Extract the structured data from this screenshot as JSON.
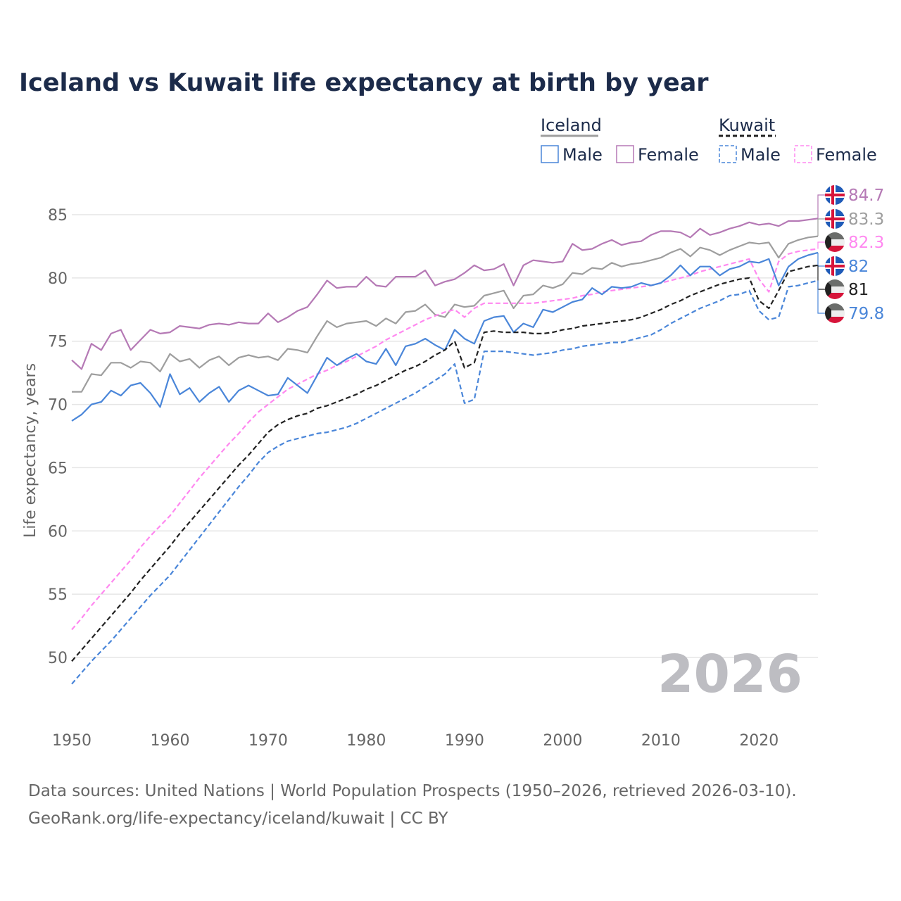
{
  "title": "Iceland vs Kuwait life expectancy at birth by year",
  "legend": {
    "groups": [
      {
        "label": "Iceland",
        "underline_color": "#9e9e9e",
        "dashed": false
      },
      {
        "label": "Kuwait",
        "underline_color": "#222222",
        "dashed": true
      }
    ],
    "items": [
      {
        "label": "Male",
        "color": "#4a86d9",
        "dashed": false
      },
      {
        "label": "Female",
        "color": "#b579b5",
        "dashed": false
      },
      {
        "label": "Male",
        "color": "#4a86d9",
        "dashed": true
      },
      {
        "label": "Female",
        "color": "#ff88f0",
        "dashed": true
      }
    ]
  },
  "current_year": "2026",
  "source_line1": "Data sources: United Nations | World Population Prospects (1950–2026, retrieved 2026-03-10).",
  "source_line2": "GeoRank.org/life-expectancy/iceland/kuwait | CC BY",
  "chart_data": {
    "type": "line",
    "title": "Iceland vs Kuwait life expectancy at birth by year",
    "xlabel": "",
    "ylabel": "Life expectancy, years",
    "xlim": [
      1950,
      2026
    ],
    "ylim": [
      45.2,
      87
    ],
    "x_ticks": [
      "1950",
      "1960",
      "1970",
      "1980",
      "1990",
      "2000",
      "2010",
      "2020"
    ],
    "y_ticks": [
      "50",
      "55",
      "60",
      "65",
      "70",
      "75",
      "80",
      "85"
    ],
    "grid": true,
    "legend_position": "top-right",
    "x_start": 1950,
    "series": [
      {
        "name": "Iceland Female",
        "country": "Iceland",
        "color": "#b579b5",
        "dashed": false,
        "end_label": "84.7",
        "flag": "iceland",
        "values": [
          73.5,
          72.8,
          74.8,
          74.3,
          75.6,
          75.9,
          74.3,
          75.1,
          75.9,
          75.6,
          75.7,
          76.2,
          76.1,
          76.0,
          76.3,
          76.4,
          76.3,
          76.5,
          76.4,
          76.4,
          77.2,
          76.5,
          76.9,
          77.4,
          77.7,
          78.7,
          79.8,
          79.2,
          79.3,
          79.3,
          80.1,
          79.4,
          79.3,
          80.1,
          80.1,
          80.1,
          80.6,
          79.4,
          79.7,
          79.9,
          80.4,
          81.0,
          80.6,
          80.7,
          81.1,
          79.4,
          81.0,
          81.4,
          81.3,
          81.2,
          81.3,
          82.7,
          82.2,
          82.3,
          82.7,
          83.0,
          82.6,
          82.8,
          82.9,
          83.4,
          83.7,
          83.7,
          83.6,
          83.2,
          83.9,
          83.4,
          83.6,
          83.9,
          84.1,
          84.4,
          84.2,
          84.3,
          84.1,
          84.5,
          84.5,
          84.6,
          84.7
        ]
      },
      {
        "name": "Iceland Total",
        "country": "Iceland",
        "color": "#9e9e9e",
        "dashed": false,
        "end_label": "83.3",
        "flag": "iceland",
        "values": [
          71.0,
          71.0,
          72.4,
          72.3,
          73.3,
          73.3,
          72.9,
          73.4,
          73.3,
          72.6,
          74.0,
          73.4,
          73.6,
          72.9,
          73.5,
          73.8,
          73.1,
          73.7,
          73.9,
          73.7,
          73.8,
          73.5,
          74.4,
          74.3,
          74.1,
          75.4,
          76.6,
          76.1,
          76.4,
          76.5,
          76.6,
          76.2,
          76.8,
          76.4,
          77.3,
          77.4,
          77.9,
          77.1,
          76.9,
          77.9,
          77.7,
          77.8,
          78.6,
          78.8,
          79.0,
          77.6,
          78.6,
          78.7,
          79.4,
          79.2,
          79.5,
          80.4,
          80.3,
          80.8,
          80.7,
          81.2,
          80.9,
          81.1,
          81.2,
          81.4,
          81.6,
          82.0,
          82.3,
          81.7,
          82.4,
          82.2,
          81.8,
          82.2,
          82.5,
          82.8,
          82.7,
          82.8,
          81.6,
          82.7,
          83.0,
          83.2,
          83.3
        ]
      },
      {
        "name": "Kuwait Female",
        "country": "Kuwait",
        "color": "#ff88f0",
        "dashed": true,
        "end_label": "82.3",
        "flag": "kuwait",
        "values": [
          52.2,
          53.1,
          54.1,
          55.0,
          55.9,
          56.8,
          57.7,
          58.7,
          59.6,
          60.4,
          61.2,
          62.2,
          63.2,
          64.2,
          65.1,
          66.0,
          66.9,
          67.7,
          68.6,
          69.4,
          70.0,
          70.6,
          71.2,
          71.6,
          72.0,
          72.4,
          72.7,
          73.1,
          73.4,
          73.8,
          74.2,
          74.6,
          75.1,
          75.5,
          75.9,
          76.3,
          76.7,
          77.0,
          77.3,
          77.5,
          76.9,
          77.6,
          78.0,
          78.0,
          78.0,
          78.0,
          78.0,
          78.0,
          78.1,
          78.2,
          78.3,
          78.4,
          78.6,
          78.7,
          78.9,
          79.0,
          79.1,
          79.2,
          79.3,
          79.4,
          79.6,
          79.8,
          80.0,
          80.2,
          80.5,
          80.7,
          80.9,
          81.1,
          81.3,
          81.5,
          79.9,
          78.9,
          81.3,
          81.9,
          82.1,
          82.2,
          82.3
        ]
      },
      {
        "name": "Iceland Male",
        "country": "Iceland",
        "color": "#4a86d9",
        "dashed": false,
        "end_label": "82",
        "flag": "iceland",
        "values": [
          68.7,
          69.2,
          70.0,
          70.2,
          71.1,
          70.7,
          71.5,
          71.7,
          70.9,
          69.8,
          72.4,
          70.8,
          71.3,
          70.2,
          70.9,
          71.4,
          70.2,
          71.1,
          71.5,
          71.1,
          70.7,
          70.8,
          72.1,
          71.5,
          70.9,
          72.3,
          73.7,
          73.1,
          73.6,
          74.0,
          73.4,
          73.2,
          74.4,
          73.1,
          74.6,
          74.8,
          75.2,
          74.7,
          74.3,
          75.9,
          75.2,
          74.8,
          76.6,
          76.9,
          77.0,
          75.7,
          76.4,
          76.1,
          77.5,
          77.3,
          77.7,
          78.1,
          78.3,
          79.2,
          78.7,
          79.3,
          79.2,
          79.3,
          79.6,
          79.4,
          79.6,
          80.2,
          81.0,
          80.2,
          80.9,
          80.9,
          80.2,
          80.7,
          80.9,
          81.3,
          81.2,
          81.5,
          79.4,
          80.9,
          81.5,
          81.8,
          82.0
        ]
      },
      {
        "name": "Kuwait Total",
        "country": "Kuwait",
        "color": "#222222",
        "dashed": true,
        "end_label": "81",
        "flag": "kuwait",
        "values": [
          49.7,
          50.6,
          51.5,
          52.4,
          53.3,
          54.2,
          55.1,
          56.1,
          57.0,
          57.9,
          58.8,
          59.8,
          60.7,
          61.6,
          62.5,
          63.4,
          64.3,
          65.2,
          66.0,
          66.9,
          67.8,
          68.4,
          68.8,
          69.1,
          69.3,
          69.7,
          69.9,
          70.2,
          70.5,
          70.8,
          71.2,
          71.5,
          71.9,
          72.3,
          72.7,
          73.0,
          73.4,
          73.9,
          74.3,
          75.0,
          72.9,
          73.3,
          75.7,
          75.8,
          75.7,
          75.7,
          75.7,
          75.6,
          75.6,
          75.7,
          75.9,
          76.0,
          76.2,
          76.3,
          76.4,
          76.5,
          76.6,
          76.7,
          76.9,
          77.2,
          77.5,
          77.9,
          78.2,
          78.6,
          78.9,
          79.2,
          79.5,
          79.7,
          79.9,
          80.0,
          78.2,
          77.6,
          79.0,
          80.5,
          80.7,
          80.9,
          81.0
        ]
      },
      {
        "name": "Kuwait Male",
        "country": "Kuwait",
        "color": "#4a86d9",
        "dashed": true,
        "end_label": "79.8",
        "flag": "kuwait",
        "values": [
          47.9,
          48.8,
          49.7,
          50.5,
          51.3,
          52.2,
          53.1,
          54.0,
          54.9,
          55.7,
          56.5,
          57.5,
          58.5,
          59.5,
          60.5,
          61.5,
          62.5,
          63.5,
          64.4,
          65.4,
          66.2,
          66.7,
          67.1,
          67.3,
          67.5,
          67.7,
          67.8,
          68.0,
          68.2,
          68.5,
          68.9,
          69.3,
          69.7,
          70.1,
          70.5,
          70.9,
          71.4,
          71.9,
          72.4,
          73.2,
          70.1,
          70.4,
          74.2,
          74.2,
          74.2,
          74.1,
          74.0,
          73.9,
          74.0,
          74.1,
          74.3,
          74.4,
          74.6,
          74.7,
          74.8,
          74.9,
          74.9,
          75.1,
          75.3,
          75.5,
          75.9,
          76.4,
          76.8,
          77.2,
          77.6,
          77.9,
          78.2,
          78.6,
          78.7,
          79.0,
          77.4,
          76.7,
          76.9,
          79.3,
          79.4,
          79.6,
          79.8
        ]
      }
    ]
  }
}
